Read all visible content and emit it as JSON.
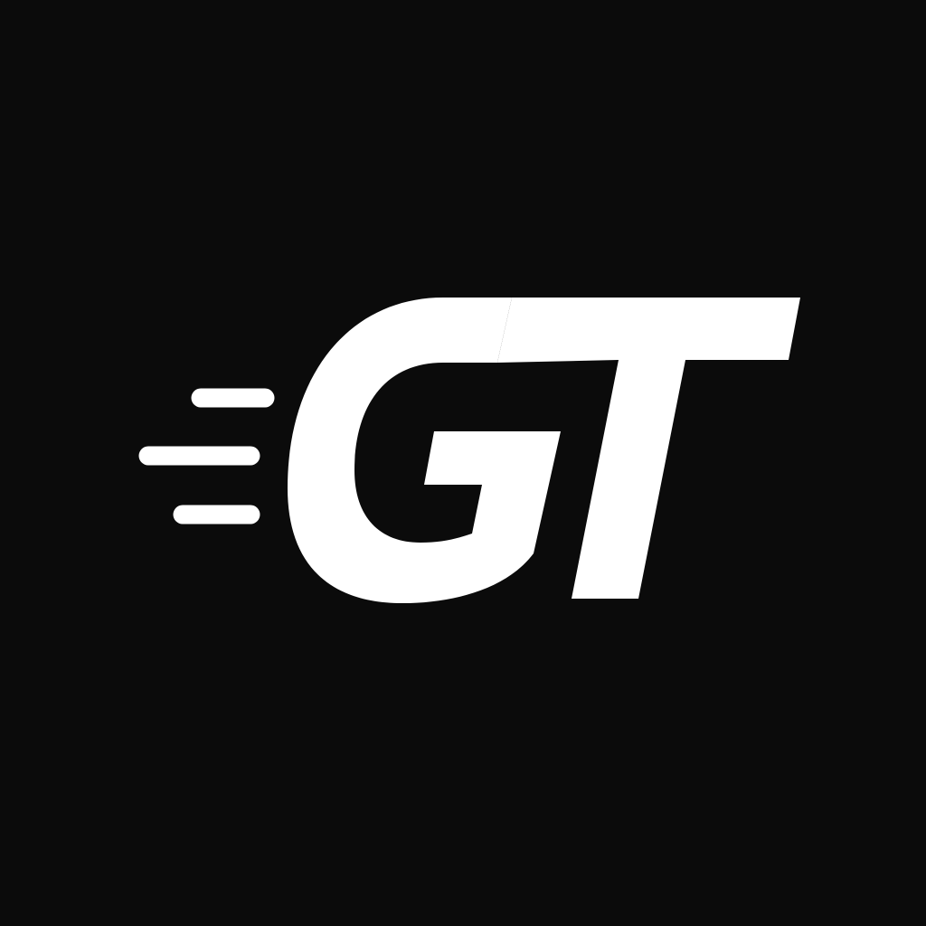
{
  "logo": {
    "lettering": "GT",
    "icon": "speed-lines",
    "mark_color": "#ffffff",
    "background_color": "#0b0b0b"
  }
}
